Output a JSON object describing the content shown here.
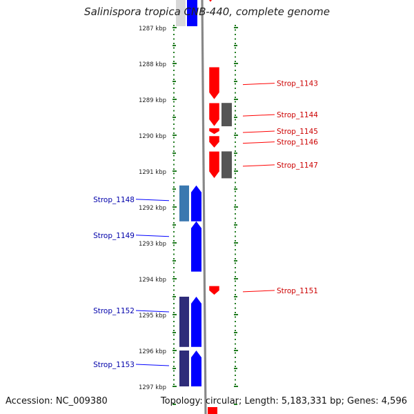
{
  "header": {
    "title": "Salinispora tropica CNB-440, complete genome"
  },
  "footer": {
    "accession": "Accession: NC_009380",
    "summary": "Topology: circular; Length: 5,183,331 bp; Genes: 4,596"
  },
  "ruler": {
    "ticks": [
      "1287 kbp",
      "1288 kbp",
      "1289 kbp",
      "1290 kbp",
      "1291 kbp",
      "1292 kbp",
      "1293 kbp",
      "1294 kbp",
      "1295 kbp",
      "1296 kbp",
      "1297 kbp"
    ]
  },
  "colors": {
    "forward_gene": "#ff0000",
    "forward_other": "#555555",
    "reverse_gene": "#0000ff",
    "reverse_other_light": "#3a78b0",
    "reverse_other_dark": "#2e2c7a",
    "tick": "#1e7a1e",
    "backbone": "#888888"
  },
  "features": {
    "forward": [
      {
        "label": "Strop_1143",
        "start_kbp": 1288.1,
        "end_kbp": 1289.0
      },
      {
        "label": "Strop_1144",
        "start_kbp": 1289.1,
        "end_kbp": 1289.75
      },
      {
        "label": "Strop_1145",
        "start_kbp": 1289.8,
        "end_kbp": 1289.97
      },
      {
        "label": "Strop_1146",
        "start_kbp": 1290.02,
        "end_kbp": 1290.35
      },
      {
        "label": "Strop_1147",
        "start_kbp": 1290.45,
        "end_kbp": 1291.2
      },
      {
        "label": "Strop_1151",
        "start_kbp": 1294.2,
        "end_kbp": 1294.45
      }
    ],
    "reverse": [
      {
        "label": "Strop_1148",
        "start_kbp": 1291.4,
        "end_kbp": 1292.4
      },
      {
        "label": "Strop_1149",
        "start_kbp": 1292.4,
        "end_kbp": 1293.8
      },
      {
        "label": "Strop_1152",
        "start_kbp": 1294.5,
        "end_kbp": 1295.9
      },
      {
        "label": "Strop_1153",
        "start_kbp": 1296.0,
        "end_kbp": 1297.0
      }
    ]
  }
}
